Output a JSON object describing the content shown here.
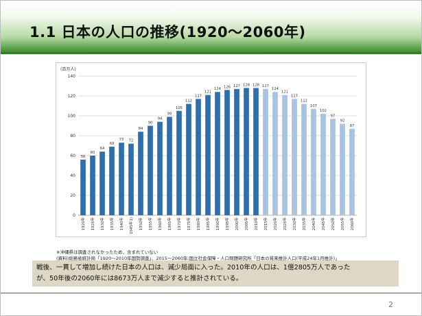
{
  "slide": {
    "title": "1.1 日本の人口の推移(1920〜2060年)",
    "page_number": "2",
    "note_1": "※沖縄県は調査されなかったため、含まれていない",
    "note_2": "(資料)総務省統計局「1920〜2010年国勢調査」、2015〜2060年:国立社会保障・人口問題研究所「日本の将来推計人口(平成24年1月推計)」",
    "summary_line_1": "戦後、一貫して増加し続けた日本の人口は、減少局面に入った。2010年の人口は、1億2805万人であった",
    "summary_line_2": "が、50年後の2060年には8673万人まで減少すると推計されている。"
  },
  "chart_data": {
    "type": "bar",
    "ylabel": "(百万人)",
    "ylim": [
      0,
      140
    ],
    "yticks": [
      0,
      20,
      40,
      60,
      80,
      100,
      120,
      140
    ],
    "grid": true,
    "categories": [
      "1920年",
      "1925年",
      "1930年",
      "1935年",
      "1940年",
      "1945年1)",
      "1950年",
      "1955年",
      "1960年",
      "1965年",
      "1970年",
      "1975年",
      "1980年",
      "1985年",
      "1990年",
      "1995年",
      "2000年",
      "2005年",
      "2010年",
      "2015年",
      "2020年",
      "2025年",
      "2030年",
      "2035年",
      "2040年",
      "2045年",
      "2050年",
      "2055年",
      "2060年"
    ],
    "values": [
      56,
      60,
      64,
      69,
      73,
      72,
      84,
      90,
      94,
      99,
      105,
      112,
      117,
      121,
      124,
      126,
      127,
      128,
      128,
      127,
      124,
      121,
      117,
      112,
      107,
      102,
      97,
      92,
      87
    ],
    "projected_from_index": 19,
    "colors": {
      "actual": "#2e6fb0",
      "projected": "#a8c4e0",
      "label": "#333333",
      "grid": "#d8d8d8"
    }
  }
}
